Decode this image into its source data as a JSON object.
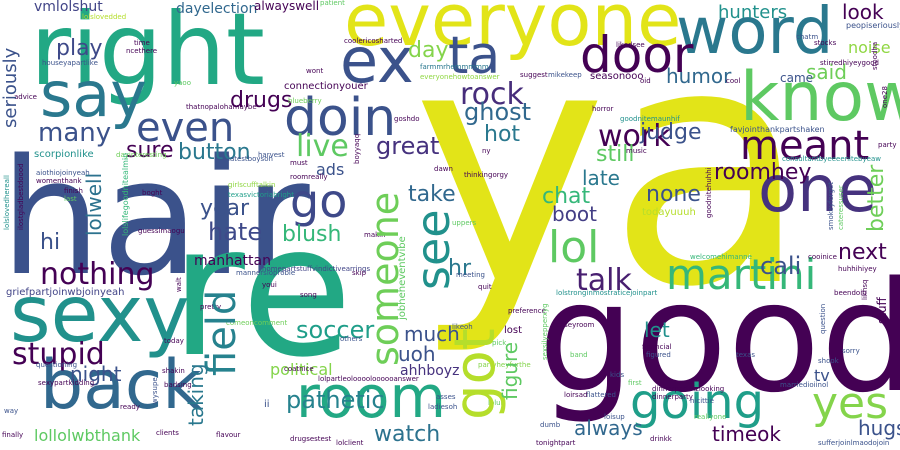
{
  "words": [
    {
      "text": "ya",
      "color": "#e2e418"
    },
    {
      "text": "hair",
      "color": "#3b528b"
    },
    {
      "text": "re",
      "color": "#22a884"
    },
    {
      "text": "good",
      "color": "#440154"
    },
    {
      "text": "right",
      "color": "#22a884"
    },
    {
      "text": "everyone",
      "color": "#e2e418"
    },
    {
      "text": "word",
      "color": "#2a788e"
    },
    {
      "text": "sexy",
      "color": "#21918c"
    },
    {
      "text": "say",
      "color": "#2a788e"
    },
    {
      "text": "back",
      "color": "#31688e"
    },
    {
      "text": "ex",
      "color": "#3b528b"
    },
    {
      "text": "ta",
      "color": "#3b528b"
    },
    {
      "text": "know",
      "color": "#5ec962"
    },
    {
      "text": "one",
      "color": "#46327e"
    },
    {
      "text": "door",
      "color": "#440154"
    },
    {
      "text": "room",
      "color": "#22a884"
    },
    {
      "text": "got",
      "color": "#b5de2b"
    },
    {
      "text": "going",
      "color": "#1f9e89"
    },
    {
      "text": "doin",
      "color": "#3b528b"
    },
    {
      "text": "even",
      "color": "#3b528b"
    },
    {
      "text": "meant",
      "color": "#440154"
    },
    {
      "text": "martini",
      "color": "#35b779"
    },
    {
      "text": "lol",
      "color": "#5ec962"
    },
    {
      "text": "someone",
      "color": "#6ece58"
    },
    {
      "text": "field",
      "color": "#26828e"
    },
    {
      "text": "go",
      "color": "#3e4989"
    },
    {
      "text": "see",
      "color": "#21918c"
    },
    {
      "text": "yes",
      "color": "#84d44b"
    },
    {
      "text": "nothing",
      "color": "#440154"
    },
    {
      "text": "stupid",
      "color": "#440154"
    },
    {
      "text": "rock",
      "color": "#472d7b"
    },
    {
      "text": "work",
      "color": "#440154"
    },
    {
      "text": "live",
      "color": "#5ec962"
    },
    {
      "text": "talk",
      "color": "#481f70"
    },
    {
      "text": "pathetic",
      "color": "#26828e"
    },
    {
      "text": "watch",
      "color": "#2c728e"
    },
    {
      "text": "soccer",
      "color": "#1f9e89"
    },
    {
      "text": "hate",
      "color": "#3e4989"
    },
    {
      "text": "cali",
      "color": "#3b528b"
    },
    {
      "text": "ghost",
      "color": "#31688e"
    },
    {
      "text": "hot",
      "color": "#2a788e"
    },
    {
      "text": "judge",
      "color": "#3b528b"
    },
    {
      "text": "still",
      "color": "#5ec962"
    },
    {
      "text": "great",
      "color": "#46327e"
    },
    {
      "text": "button",
      "color": "#2a788e"
    },
    {
      "text": "sure",
      "color": "#440154"
    },
    {
      "text": "play",
      "color": "#3e4989"
    },
    {
      "text": "many",
      "color": "#3b528b"
    },
    {
      "text": "day",
      "color": "#84d44b"
    },
    {
      "text": "drugs",
      "color": "#440154"
    },
    {
      "text": "humor",
      "color": "#31688e"
    },
    {
      "text": "hunters",
      "color": "#21918c"
    },
    {
      "text": "look",
      "color": "#440154"
    },
    {
      "text": "said",
      "color": "#6ece58"
    },
    {
      "text": "noise",
      "color": "#90d743"
    },
    {
      "text": "seriously",
      "color": "#3b528b"
    },
    {
      "text": "vmlolshut",
      "color": "#414487"
    },
    {
      "text": "dayelection",
      "color": "#31688e"
    },
    {
      "text": "alwayswell",
      "color": "#440154"
    },
    {
      "text": "lolwell",
      "color": "#2c728e"
    },
    {
      "text": "hi",
      "color": "#3b528b"
    },
    {
      "text": "year",
      "color": "#3b528b"
    },
    {
      "text": "blush",
      "color": "#35b779"
    },
    {
      "text": "take",
      "color": "#31688e"
    },
    {
      "text": "chat",
      "color": "#35b779"
    },
    {
      "text": "boot",
      "color": "#433e85"
    },
    {
      "text": "late",
      "color": "#2a788e"
    },
    {
      "text": "none",
      "color": "#3b528b"
    },
    {
      "text": "roomhey",
      "color": "#440154"
    },
    {
      "text": "better",
      "color": "#6ece58"
    },
    {
      "text": "next",
      "color": "#440154"
    },
    {
      "text": "hr",
      "color": "#2a788e"
    },
    {
      "text": "night",
      "color": "#3b528b"
    },
    {
      "text": "much",
      "color": "#3b528b"
    },
    {
      "text": "uoh",
      "color": "#3b528b"
    },
    {
      "text": "let",
      "color": "#21918c"
    },
    {
      "text": "figure",
      "color": "#5ec962"
    },
    {
      "text": "taking",
      "color": "#2a788e"
    },
    {
      "text": "always",
      "color": "#31688e"
    },
    {
      "text": "timeok",
      "color": "#440154"
    },
    {
      "text": "hugs",
      "color": "#3b528b"
    },
    {
      "text": "lollolwbthank",
      "color": "#5ec962"
    },
    {
      "text": "political",
      "color": "#84d44b"
    },
    {
      "text": "ahhboyz",
      "color": "#46327e"
    },
    {
      "text": "ads",
      "color": "#3b528b"
    },
    {
      "text": "tv",
      "color": "#3b528b"
    },
    {
      "text": "stuff",
      "color": "#440154"
    },
    {
      "text": "came",
      "color": "#3b528b"
    },
    {
      "text": "manhattan",
      "color": "#440154"
    },
    {
      "text": "scorpionlike",
      "color": "#21918c"
    },
    {
      "text": "griefpartjoinwbjoinyeah",
      "color": "#414487"
    },
    {
      "text": "connectionyouer",
      "color": "#440154"
    },
    {
      "text": "favjointhankpartshaken",
      "color": "#3b528b"
    },
    {
      "text": "consultantbyeeeenitebyeaw",
      "color": "#21918c"
    },
    {
      "text": "lolslifegoodnitealmin",
      "color": "#35b779"
    },
    {
      "text": "dayinteresting",
      "color": "#6ece58"
    },
    {
      "text": "girlscufftalkin",
      "color": "#90d743"
    },
    {
      "text": "latestboysoh",
      "color": "#3b528b"
    },
    {
      "text": "thatnopalohamaybe",
      "color": "#440154"
    },
    {
      "text": "texasvictoriabright",
      "color": "#1f9e89"
    },
    {
      "text": "mannersioprobie",
      "color": "#3b528b"
    },
    {
      "text": "guessimaogu",
      "color": "#440154"
    },
    {
      "text": "homepartstuffvindictivearrings",
      "color": "#414487"
    },
    {
      "text": "jobheheventvibe",
      "color": "#5ec962"
    },
    {
      "text": "comeoncomment",
      "color": "#6ece58"
    },
    {
      "text": "partyheyfurthe",
      "color": "#84d44b"
    },
    {
      "text": "lolpartleolooooloooooanswer",
      "color": "#440154"
    },
    {
      "text": "lolstronginmostraticejoinpart",
      "color": "#21918c"
    },
    {
      "text": "dinnerpartbizlooking",
      "color": "#440154"
    },
    {
      "text": "sufferjoinlmaodojoin",
      "color": "#3b528b"
    },
    {
      "text": "realiyone",
      "color": "#5ec962"
    },
    {
      "text": "welcomehimanne",
      "color": "#35b779"
    },
    {
      "text": "seasonooo",
      "color": "#440154"
    },
    {
      "text": "mikekeep",
      "color": "#3b528b"
    },
    {
      "text": "goodnitemaunhif",
      "color": "#21918c"
    },
    {
      "text": "everyonehowtoanswer",
      "color": "#90d743"
    },
    {
      "text": "farmmrhemmmmm",
      "color": "#2a788e"
    },
    {
      "text": "stirredhiyeygood",
      "color": "#440154"
    },
    {
      "text": "peopiseriously",
      "color": "#3b528b"
    },
    {
      "text": "houseyapartlike",
      "color": "#3b528b"
    },
    {
      "text": "coolericosharted",
      "color": "#440154"
    },
    {
      "text": "blueberry",
      "color": "#6ece58"
    },
    {
      "text": "lolslovedded",
      "color": "#b5de2b"
    },
    {
      "text": "lolslovedhereall",
      "color": "#21918c"
    },
    {
      "text": "dinnerparty",
      "color": "#440154"
    },
    {
      "text": "tonightpart",
      "color": "#440154"
    },
    {
      "text": "ilostgladbestdoood",
      "color": "#440154"
    },
    {
      "text": "aiothiojoinyeah",
      "color": "#3b528b"
    },
    {
      "text": "womenthank",
      "color": "#440154"
    },
    {
      "text": "sexypartkidding",
      "color": "#440154"
    },
    {
      "text": "questioning",
      "color": "#3b528b"
    },
    {
      "text": "flavour",
      "color": "#440154"
    },
    {
      "text": "drugsestest",
      "color": "#440154"
    },
    {
      "text": "lolclient",
      "color": "#440154"
    },
    {
      "text": "ladiesoh",
      "color": "#3b528b"
    },
    {
      "text": "lolur",
      "color": "#5ec962"
    },
    {
      "text": "asses",
      "color": "#3b528b"
    },
    {
      "text": "flattered",
      "color": "#3b528b"
    },
    {
      "text": "loisup",
      "color": "#3b528b"
    },
    {
      "text": "drinkk",
      "color": "#440154"
    },
    {
      "text": "nicittie",
      "color": "#3b528b"
    },
    {
      "text": "marriedioiinol",
      "color": "#3b528b"
    },
    {
      "text": "sorry",
      "color": "#3b528b"
    },
    {
      "text": "shook",
      "color": "#3b528b"
    },
    {
      "text": "party",
      "color": "#440154"
    },
    {
      "text": "question",
      "color": "#3b528b"
    },
    {
      "text": "cooinice",
      "color": "#440154"
    },
    {
      "text": "smokeyforget",
      "color": "#3b528b"
    },
    {
      "text": "cateressuser",
      "color": "#5ec962"
    },
    {
      "text": "huhhihiyey",
      "color": "#440154"
    },
    {
      "text": "beendoin",
      "color": "#440154"
    },
    {
      "text": "financial",
      "color": "#440154"
    },
    {
      "text": "figured",
      "color": "#3b528b"
    },
    {
      "text": "texas",
      "color": "#3b528b"
    },
    {
      "text": "first",
      "color": "#5ec962"
    },
    {
      "text": "kids",
      "color": "#3b528b"
    },
    {
      "text": "dumb",
      "color": "#3b528b"
    },
    {
      "text": "wont",
      "color": "#440154"
    },
    {
      "text": "roomreally",
      "color": "#440154"
    },
    {
      "text": "boyyaqq",
      "color": "#440154"
    },
    {
      "text": "thinkingorgy",
      "color": "#440154"
    },
    {
      "text": "todayuuuh",
      "color": "#b5de2b"
    },
    {
      "text": "lost",
      "color": "#440154"
    },
    {
      "text": "pick",
      "color": "#5ec962"
    },
    {
      "text": "likeoh",
      "color": "#3b528b"
    },
    {
      "text": "others",
      "color": "#3b528b"
    },
    {
      "text": "pretty",
      "color": "#440154"
    },
    {
      "text": "today",
      "color": "#440154"
    },
    {
      "text": "ready",
      "color": "#440154"
    },
    {
      "text": "badsing",
      "color": "#440154"
    },
    {
      "text": "finally",
      "color": "#440154"
    },
    {
      "text": "way",
      "color": "#3b528b"
    },
    {
      "text": "song",
      "color": "#440154"
    },
    {
      "text": "youi",
      "color": "#440154"
    },
    {
      "text": "quit",
      "color": "#440154"
    },
    {
      "text": "meeting",
      "color": "#3b528b"
    },
    {
      "text": "preference",
      "color": "#440154"
    },
    {
      "text": "harvest",
      "color": "#3b528b"
    },
    {
      "text": "must",
      "color": "#440154"
    },
    {
      "text": "boght",
      "color": "#440154"
    },
    {
      "text": "finish",
      "color": "#440154"
    },
    {
      "text": "last",
      "color": "#5ec962"
    },
    {
      "text": "advice",
      "color": "#440154"
    },
    {
      "text": "time",
      "color": "#440154"
    },
    {
      "text": "ncethere",
      "color": "#440154"
    },
    {
      "text": "stocks",
      "color": "#440154"
    },
    {
      "text": "oid",
      "color": "#440154"
    },
    {
      "text": "cool",
      "color": "#440154"
    },
    {
      "text": "horror",
      "color": "#440154"
    },
    {
      "text": "likedsee",
      "color": "#440154"
    },
    {
      "text": "patient",
      "color": "#5ec962"
    },
    {
      "text": "ny",
      "color": "#440154"
    },
    {
      "text": "music",
      "color": "#440154"
    },
    {
      "text": "goshdo",
      "color": "#440154"
    },
    {
      "text": "uppers",
      "color": "#5ec962"
    },
    {
      "text": "makin",
      "color": "#440154"
    },
    {
      "text": "dawn",
      "color": "#440154"
    },
    {
      "text": "caseyroom",
      "color": "#440154"
    },
    {
      "text": "band",
      "color": "#5ec962"
    },
    {
      "text": "walt",
      "color": "#440154"
    },
    {
      "text": "clients",
      "color": "#440154"
    },
    {
      "text": "coatnice",
      "color": "#440154"
    },
    {
      "text": "shakin",
      "color": "#440154"
    },
    {
      "text": "wysupe",
      "color": "#3b528b"
    },
    {
      "text": "chatm",
      "color": "#3b528b"
    },
    {
      "text": "one28",
      "color": "#440154"
    },
    {
      "text": "stoodha",
      "color": "#440154"
    },
    {
      "text": "suggest",
      "color": "#440154"
    },
    {
      "text": "sexsilyepperxyg",
      "color": "#5ec962"
    },
    {
      "text": "loirsad",
      "color": "#440154"
    },
    {
      "text": "skip",
      "color": "#440154"
    },
    {
      "text": "likhsq",
      "color": "#440154"
    },
    {
      "text": "ii",
      "color": "#3b528b"
    },
    {
      "text": "yaoo",
      "color": "#5ec962"
    },
    {
      "text": "goodnitehuhhi",
      "color": "#440154"
    }
  ]
}
